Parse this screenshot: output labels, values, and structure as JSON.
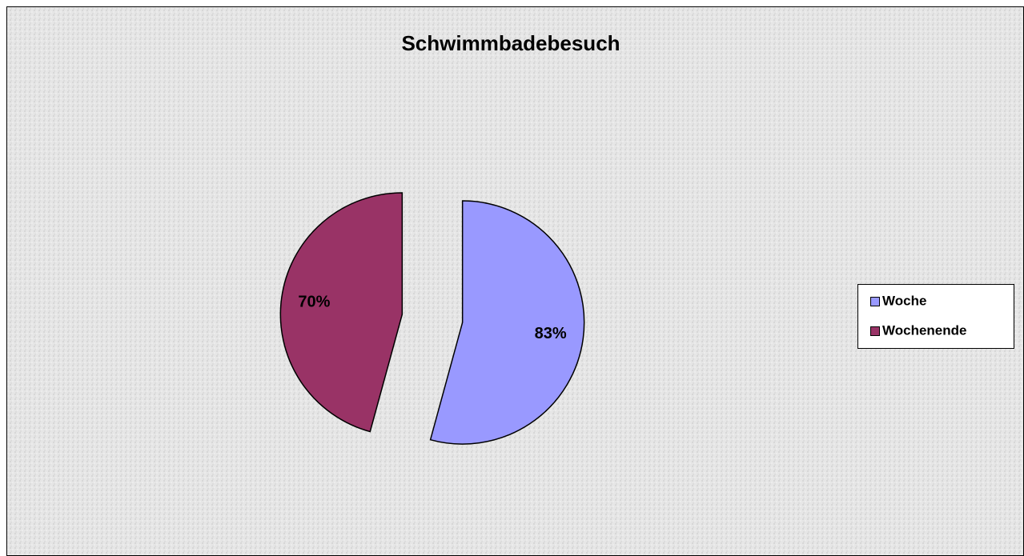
{
  "chart_data": {
    "type": "pie",
    "title": "Schwimmbadebesuch",
    "categories": [
      "Woche",
      "Wochenende"
    ],
    "values": [
      83,
      70
    ],
    "value_labels": [
      "83%",
      "70%"
    ],
    "colors": [
      "#9999ff",
      "#993366"
    ],
    "legend": "right"
  }
}
